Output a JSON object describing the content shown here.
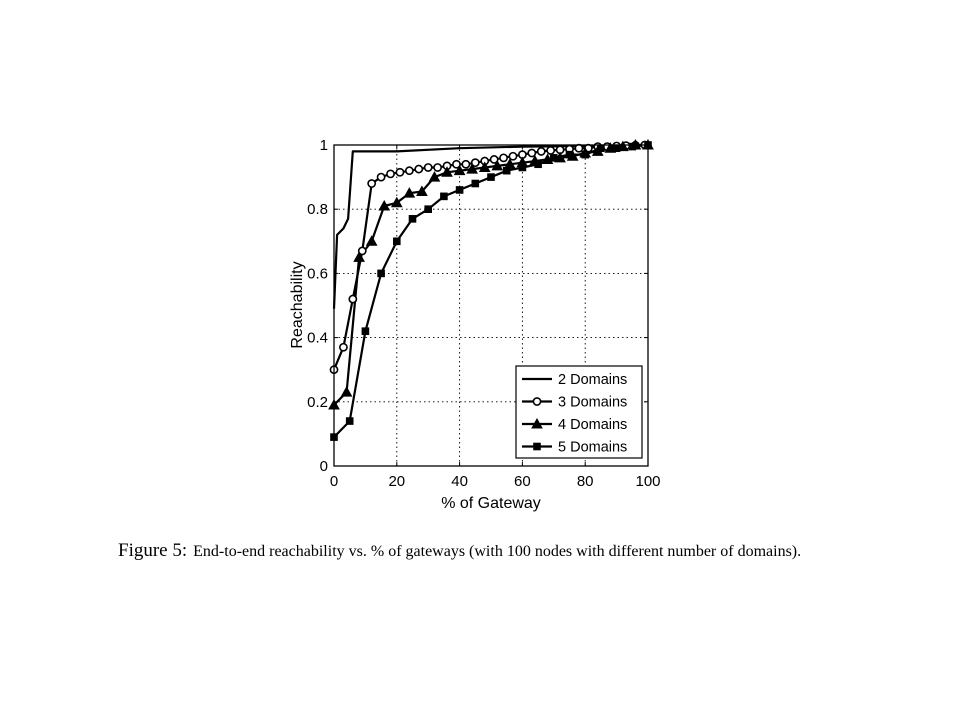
{
  "chart_data": {
    "type": "line",
    "xlabel": "% of Gateway",
    "ylabel": "Reachability",
    "xlim": [
      0,
      100
    ],
    "ylim": [
      0,
      1
    ],
    "xticks": [
      "0",
      "20",
      "40",
      "60",
      "80",
      "100"
    ],
    "yticks": [
      "0",
      "0.2",
      "0.4",
      "0.6",
      "0.8",
      "1"
    ],
    "grid": true,
    "legend_position": "bottom-right",
    "series": [
      {
        "name": "2 Domains",
        "marker": "none",
        "x": [
          0,
          1,
          3,
          4.5,
          6,
          20,
          40,
          60,
          80,
          100
        ],
        "y": [
          0.49,
          0.72,
          0.74,
          0.77,
          0.98,
          0.98,
          0.99,
          0.995,
          0.997,
          1.0
        ]
      },
      {
        "name": "3 Domains",
        "marker": "circle",
        "x": [
          0,
          3,
          6,
          9,
          12,
          15,
          18,
          21,
          24,
          27,
          30,
          33,
          36,
          39,
          42,
          45,
          48,
          51,
          54,
          57,
          60,
          63,
          66,
          69,
          72,
          75,
          78,
          81,
          84,
          87,
          90,
          93,
          96,
          99
        ],
        "y": [
          0.3,
          0.37,
          0.52,
          0.67,
          0.88,
          0.9,
          0.91,
          0.915,
          0.92,
          0.925,
          0.93,
          0.93,
          0.935,
          0.94,
          0.94,
          0.945,
          0.95,
          0.955,
          0.96,
          0.965,
          0.97,
          0.975,
          0.98,
          0.983,
          0.985,
          0.987,
          0.99,
          0.99,
          0.995,
          0.995,
          0.997,
          0.998,
          0.999,
          1.0
        ]
      },
      {
        "name": "4 Domains",
        "marker": "triangle",
        "x": [
          0,
          4,
          8,
          12,
          16,
          20,
          24,
          28,
          32,
          36,
          40,
          44,
          48,
          52,
          56,
          60,
          64,
          68,
          72,
          76,
          80,
          84,
          88,
          92,
          96,
          100
        ],
        "y": [
          0.19,
          0.23,
          0.65,
          0.7,
          0.81,
          0.82,
          0.85,
          0.855,
          0.9,
          0.915,
          0.92,
          0.925,
          0.93,
          0.935,
          0.94,
          0.945,
          0.95,
          0.955,
          0.96,
          0.965,
          0.975,
          0.98,
          0.99,
          0.995,
          1.0,
          1.0
        ]
      },
      {
        "name": "5 Domains",
        "marker": "square",
        "x": [
          0,
          5,
          10,
          15,
          20,
          25,
          30,
          35,
          40,
          45,
          50,
          55,
          60,
          65,
          70,
          75,
          80,
          85,
          90,
          95,
          100
        ],
        "y": [
          0.09,
          0.14,
          0.42,
          0.6,
          0.7,
          0.77,
          0.8,
          0.84,
          0.86,
          0.88,
          0.9,
          0.92,
          0.93,
          0.94,
          0.96,
          0.97,
          0.97,
          0.99,
          0.99,
          0.995,
          1.0
        ]
      }
    ]
  },
  "caption": {
    "label": "Figure 5:",
    "text": "End-to-end reachability vs. % of gateways (with 100 nodes with different number of domains)."
  }
}
